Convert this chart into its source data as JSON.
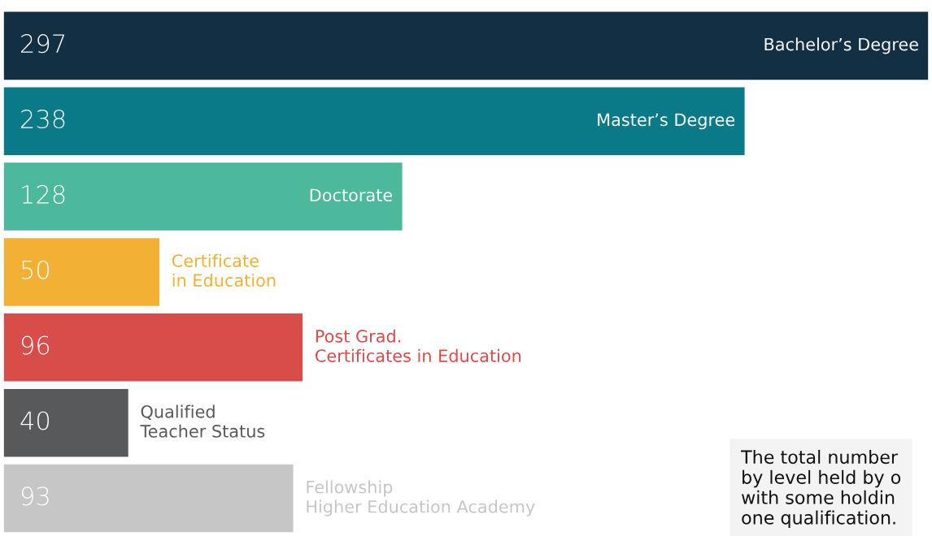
{
  "chart_data": {
    "type": "bar",
    "orientation": "horizontal",
    "categories": [
      "Bachelor’s Degree",
      "Master’s Degree",
      "Doctorate",
      "Certificate\nin Education",
      "Post Grad.\nCertificates in Education",
      "Qualified\nTeacher Status",
      "Fellowship\nHigher Education Academy"
    ],
    "values": [
      297,
      238,
      128,
      50,
      96,
      40,
      93
    ],
    "colors": [
      "#132f43",
      "#0a7a88",
      "#4cb89c",
      "#f2b134",
      "#d84c4a",
      "#58595b",
      "#c6c6c6"
    ],
    "data_labels": true,
    "annotations": [
      "The total number\nby level held by o\nwith some holdin\none qualification."
    ]
  }
}
